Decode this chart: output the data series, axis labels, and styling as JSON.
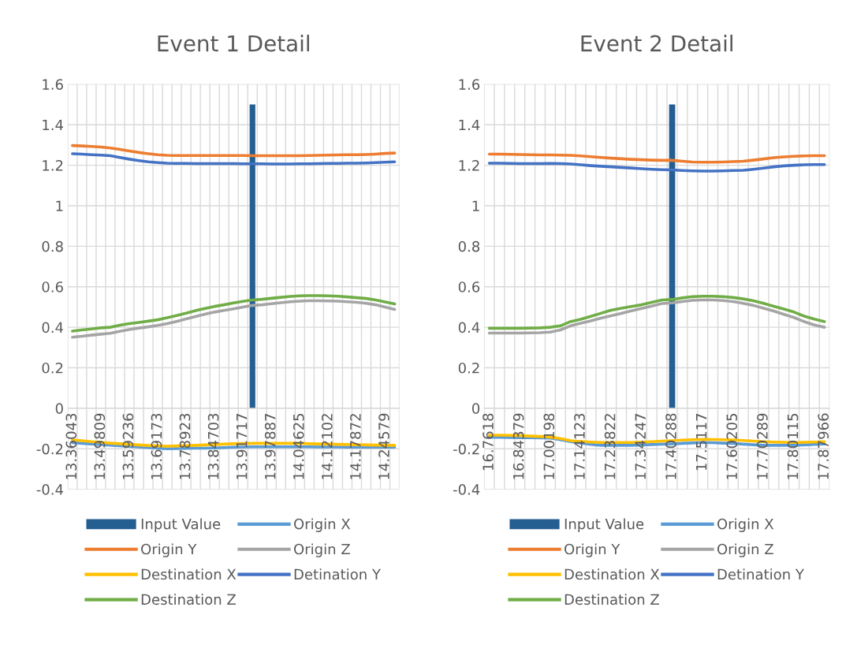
{
  "chart_data": [
    {
      "type": "line",
      "title": "Event 1 Detail",
      "categories": [
        "13.36043",
        null,
        null,
        "13.49809",
        null,
        null,
        "13.59236",
        null,
        null,
        "13.69173",
        null,
        null,
        "13.78923",
        null,
        null,
        "13.84703",
        null,
        null,
        "13.91717",
        null,
        null,
        "13.97887",
        null,
        null,
        "14.04625",
        null,
        null,
        "14.12102",
        null,
        null,
        "14.17872",
        null,
        null,
        "14.24579",
        null
      ],
      "ylim": [
        -0.4,
        1.6
      ],
      "yticks": [
        -0.4,
        -0.2,
        0,
        0.2,
        0.4,
        0.6,
        0.8,
        1,
        1.2,
        1.4,
        1.6
      ],
      "grid": true,
      "legend": "bottom",
      "series": [
        {
          "name": "Input Value",
          "type": "bar",
          "color": "#255e91",
          "values": [
            null,
            null,
            null,
            null,
            null,
            null,
            null,
            null,
            null,
            null,
            null,
            null,
            null,
            null,
            null,
            null,
            null,
            null,
            null,
            1.5,
            null,
            null,
            null,
            null,
            null,
            null,
            null,
            null,
            null,
            null,
            null,
            null,
            null,
            null,
            null
          ]
        },
        {
          "name": "Origin X",
          "color": "#5b9bd5",
          "values": [
            -0.17,
            -0.173,
            -0.176,
            -0.179,
            -0.182,
            -0.185,
            -0.188,
            -0.191,
            -0.194,
            -0.197,
            -0.2,
            -0.199,
            -0.198,
            -0.197,
            -0.197,
            -0.196,
            -0.194,
            -0.192,
            -0.191,
            -0.19,
            -0.19,
            -0.19,
            -0.19,
            -0.19,
            -0.19,
            -0.19,
            -0.191,
            -0.191,
            -0.191,
            -0.192,
            -0.192,
            -0.192,
            -0.192,
            -0.192,
            -0.192
          ]
        },
        {
          "name": "Origin Y",
          "color": "#ed7d31",
          "values": [
            1.297,
            1.295,
            1.293,
            1.29,
            1.285,
            1.278,
            1.27,
            1.263,
            1.257,
            1.252,
            1.249,
            1.248,
            1.248,
            1.248,
            1.248,
            1.248,
            1.248,
            1.248,
            1.248,
            1.247,
            1.247,
            1.247,
            1.247,
            1.247,
            1.247,
            1.248,
            1.249,
            1.25,
            1.251,
            1.252,
            1.252,
            1.253,
            1.255,
            1.258,
            1.26
          ]
        },
        {
          "name": "Origin Z",
          "color": "#a5a5a5",
          "values": [
            0.351,
            0.356,
            0.361,
            0.366,
            0.37,
            0.38,
            0.389,
            0.396,
            0.402,
            0.409,
            0.418,
            0.429,
            0.441,
            0.453,
            0.465,
            0.475,
            0.483,
            0.491,
            0.5,
            0.508,
            0.511,
            0.516,
            0.521,
            0.526,
            0.529,
            0.531,
            0.531,
            0.53,
            0.529,
            0.526,
            0.523,
            0.518,
            0.511,
            0.5,
            0.488
          ]
        },
        {
          "name": "Destination X",
          "color": "#ffc000",
          "values": [
            -0.156,
            -0.16,
            -0.165,
            -0.168,
            -0.172,
            -0.175,
            -0.178,
            -0.181,
            -0.184,
            -0.186,
            -0.187,
            -0.186,
            -0.185,
            -0.183,
            -0.181,
            -0.179,
            -0.177,
            -0.175,
            -0.174,
            -0.173,
            -0.173,
            -0.173,
            -0.173,
            -0.173,
            -0.173,
            -0.175,
            -0.176,
            -0.177,
            -0.178,
            -0.179,
            -0.18,
            -0.181,
            -0.182,
            -0.183,
            -0.183
          ]
        },
        {
          "name": "Detination Y",
          "color": "#4472c4",
          "values": [
            1.257,
            1.255,
            1.252,
            1.25,
            1.247,
            1.238,
            1.23,
            1.223,
            1.217,
            1.213,
            1.21,
            1.209,
            1.209,
            1.208,
            1.208,
            1.208,
            1.208,
            1.208,
            1.207,
            1.207,
            1.207,
            1.206,
            1.206,
            1.206,
            1.207,
            1.207,
            1.208,
            1.209,
            1.209,
            1.21,
            1.21,
            1.211,
            1.213,
            1.215,
            1.217
          ]
        },
        {
          "name": "Destination Z",
          "color": "#70ad47",
          "values": [
            0.381,
            0.387,
            0.392,
            0.397,
            0.4,
            0.41,
            0.418,
            0.424,
            0.43,
            0.437,
            0.447,
            0.458,
            0.47,
            0.482,
            0.493,
            0.503,
            0.511,
            0.52,
            0.528,
            0.535,
            0.538,
            0.543,
            0.548,
            0.552,
            0.555,
            0.556,
            0.556,
            0.555,
            0.553,
            0.55,
            0.546,
            0.542,
            0.535,
            0.525,
            0.515
          ]
        }
      ]
    },
    {
      "type": "line",
      "title": "Event 2 Detail",
      "categories": [
        "16.7618",
        null,
        null,
        "16.84379",
        null,
        null,
        "17.00198",
        null,
        null,
        "17.14123",
        null,
        null,
        "17.23822",
        null,
        null,
        "17.34247",
        null,
        null,
        "17.40288",
        null,
        null,
        "17.5117",
        null,
        null,
        "17.60205",
        null,
        null,
        "17.70289",
        null,
        null,
        "17.80115",
        null,
        null,
        "17.87966"
      ],
      "ylim": [
        -0.4,
        1.6
      ],
      "yticks": [
        -0.4,
        -0.2,
        0,
        0.2,
        0.4,
        0.6,
        0.8,
        1,
        1.2,
        1.4,
        1.6
      ],
      "grid": true,
      "legend": "bottom",
      "series": [
        {
          "name": "Input Value",
          "type": "bar",
          "color": "#255e91",
          "values": [
            null,
            null,
            null,
            null,
            null,
            null,
            null,
            null,
            null,
            null,
            null,
            null,
            null,
            null,
            null,
            null,
            null,
            null,
            1.5,
            null,
            null,
            null,
            null,
            null,
            null,
            null,
            null,
            null,
            null,
            null,
            null,
            null,
            null,
            null
          ]
        },
        {
          "name": "Origin X",
          "color": "#5b9bd5",
          "values": [
            -0.143,
            -0.143,
            -0.144,
            -0.145,
            -0.145,
            -0.146,
            -0.147,
            -0.155,
            -0.165,
            -0.172,
            -0.178,
            -0.183,
            -0.183,
            -0.183,
            -0.183,
            -0.181,
            -0.179,
            -0.177,
            -0.176,
            -0.173,
            -0.171,
            -0.169,
            -0.17,
            -0.172,
            -0.173,
            -0.177,
            -0.18,
            -0.183,
            -0.183,
            -0.183,
            -0.183,
            -0.181,
            -0.178,
            -0.176
          ]
        },
        {
          "name": "Origin Y",
          "color": "#ed7d31",
          "values": [
            1.255,
            1.255,
            1.254,
            1.253,
            1.252,
            1.251,
            1.251,
            1.25,
            1.249,
            1.246,
            1.242,
            1.238,
            1.235,
            1.232,
            1.229,
            1.227,
            1.225,
            1.224,
            1.224,
            1.22,
            1.216,
            1.215,
            1.215,
            1.216,
            1.218,
            1.22,
            1.225,
            1.231,
            1.237,
            1.241,
            1.244,
            1.246,
            1.247,
            1.247
          ]
        },
        {
          "name": "Origin Z",
          "color": "#a5a5a5",
          "values": [
            0.371,
            0.371,
            0.371,
            0.371,
            0.372,
            0.373,
            0.376,
            0.387,
            0.407,
            0.42,
            0.432,
            0.445,
            0.457,
            0.469,
            0.481,
            0.493,
            0.505,
            0.517,
            0.52,
            0.527,
            0.533,
            0.535,
            0.535,
            0.532,
            0.527,
            0.518,
            0.508,
            0.494,
            0.48,
            0.464,
            0.448,
            0.428,
            0.411,
            0.4
          ]
        },
        {
          "name": "Destination X",
          "color": "#ffc000",
          "values": [
            -0.133,
            -0.133,
            -0.134,
            -0.135,
            -0.137,
            -0.139,
            -0.142,
            -0.149,
            -0.16,
            -0.164,
            -0.167,
            -0.169,
            -0.169,
            -0.169,
            -0.169,
            -0.167,
            -0.165,
            -0.162,
            -0.16,
            -0.157,
            -0.155,
            -0.153,
            -0.154,
            -0.155,
            -0.156,
            -0.159,
            -0.162,
            -0.165,
            -0.167,
            -0.168,
            -0.169,
            -0.168,
            -0.167,
            -0.165
          ]
        },
        {
          "name": "Detination Y",
          "color": "#4472c4",
          "values": [
            1.21,
            1.21,
            1.209,
            1.208,
            1.208,
            1.208,
            1.209,
            1.208,
            1.206,
            1.202,
            1.198,
            1.195,
            1.192,
            1.189,
            1.186,
            1.183,
            1.18,
            1.178,
            1.177,
            1.174,
            1.172,
            1.171,
            1.171,
            1.172,
            1.174,
            1.175,
            1.18,
            1.186,
            1.192,
            1.197,
            1.2,
            1.202,
            1.203,
            1.203
          ]
        },
        {
          "name": "Destination Z",
          "color": "#70ad47",
          "values": [
            0.395,
            0.395,
            0.395,
            0.395,
            0.396,
            0.397,
            0.4,
            0.407,
            0.428,
            0.439,
            0.454,
            0.469,
            0.484,
            0.494,
            0.503,
            0.511,
            0.523,
            0.535,
            0.537,
            0.545,
            0.551,
            0.553,
            0.553,
            0.551,
            0.547,
            0.54,
            0.531,
            0.518,
            0.504,
            0.49,
            0.475,
            0.455,
            0.44,
            0.428
          ]
        }
      ]
    }
  ]
}
